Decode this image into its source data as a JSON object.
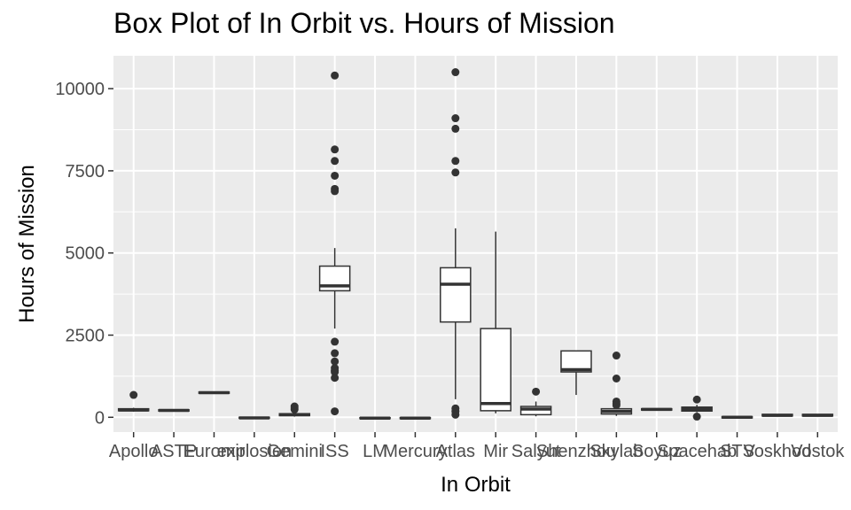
{
  "chart_data": {
    "type": "box",
    "title": "Box Plot of In Orbit vs. Hours of Mission",
    "xlabel": "In Orbit",
    "ylabel": "Hours of Mission",
    "ylim": [
      -450,
      11000
    ],
    "yticks": [
      0,
      2500,
      5000,
      7500,
      10000
    ],
    "grid": true,
    "colors": {
      "panel": "#ebebeb",
      "grid_major": "#ffffff",
      "box_fill": "#ffffff",
      "box_line": "#333333",
      "tick_text": "#4d4d4d"
    },
    "categories": [
      "Apollo",
      "ASTP",
      "Euromir",
      "explosion",
      "Gemini",
      "ISS",
      "LM",
      "Mercury",
      "Atlas",
      "Mir",
      "Salyut",
      "Shenzhou",
      "Skylab",
      "Soyuz",
      "Spacehab",
      "STS",
      "Voskhod",
      "Vostok"
    ],
    "boxes": [
      {
        "category": "Apollo",
        "q1": 200,
        "median": 220,
        "q3": 260,
        "low": 170,
        "high": 290,
        "outliers": [
          680
        ]
      },
      {
        "category": "ASTP",
        "q1": 190,
        "median": 210,
        "q3": 230,
        "low": 190,
        "high": 230,
        "outliers": []
      },
      {
        "category": "Euromir",
        "q1": 730,
        "median": 750,
        "q3": 770,
        "low": 730,
        "high": 770,
        "outliers": []
      },
      {
        "category": "explosion",
        "q1": -30,
        "median": -20,
        "q3": 0,
        "low": -30,
        "high": 0,
        "outliers": []
      },
      {
        "category": "Gemini",
        "q1": 50,
        "median": 80,
        "q3": 110,
        "low": 20,
        "high": 170,
        "outliers": [
          240,
          280,
          330
        ]
      },
      {
        "category": "ISS",
        "q1": 3850,
        "median": 4000,
        "q3": 4600,
        "low": 2700,
        "high": 5150,
        "outliers": [
          10400,
          8150,
          7800,
          7350,
          6950,
          6880,
          2300,
          1950,
          1700,
          1500,
          1420,
          1380,
          1200,
          180
        ]
      },
      {
        "category": "LM",
        "q1": -40,
        "median": -25,
        "q3": -10,
        "low": -40,
        "high": -10,
        "outliers": []
      },
      {
        "category": "Mercury",
        "q1": -40,
        "median": -25,
        "q3": -10,
        "low": -40,
        "high": -10,
        "outliers": []
      },
      {
        "category": "Atlas",
        "q1": 2900,
        "median": 4050,
        "q3": 4550,
        "low": 550,
        "high": 5750,
        "outliers": [
          10500,
          9100,
          8780,
          7800,
          7450,
          270,
          180,
          80
        ]
      },
      {
        "category": "Mir",
        "q1": 200,
        "median": 420,
        "q3": 2700,
        "low": 120,
        "high": 5650,
        "outliers": []
      },
      {
        "category": "Salyut",
        "q1": 80,
        "median": 250,
        "q3": 330,
        "low": 30,
        "high": 480,
        "outliers": [
          780
        ]
      },
      {
        "category": "Shenzhou",
        "q1": 1380,
        "median": 1450,
        "q3": 2020,
        "low": 680,
        "high": 2020,
        "outliers": []
      },
      {
        "category": "Skylab",
        "q1": 100,
        "median": 180,
        "q3": 260,
        "low": 40,
        "high": 330,
        "outliers": [
          1880,
          1180,
          480,
          420,
          370
        ]
      },
      {
        "category": "Soyuz",
        "q1": 220,
        "median": 240,
        "q3": 260,
        "low": 220,
        "high": 260,
        "outliers": []
      },
      {
        "category": "Spacehab",
        "q1": 190,
        "median": 250,
        "q3": 310,
        "low": 150,
        "high": 380,
        "outliers": [
          540,
          20
        ]
      },
      {
        "category": "STS",
        "q1": -20,
        "median": 0,
        "q3": 20,
        "low": -20,
        "high": 20,
        "outliers": []
      },
      {
        "category": "Voskhod",
        "q1": 40,
        "median": 60,
        "q3": 90,
        "low": 40,
        "high": 90,
        "outliers": []
      },
      {
        "category": "Vostok",
        "q1": 40,
        "median": 60,
        "q3": 90,
        "low": 40,
        "high": 90,
        "outliers": []
      }
    ]
  }
}
